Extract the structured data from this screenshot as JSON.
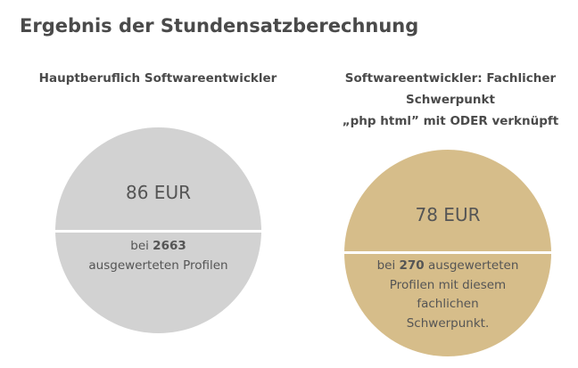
{
  "page": {
    "title": "Ergebnis der Stundensatzberechnung"
  },
  "left_result": {
    "heading": "Hauptberuflich Softwareentwickler",
    "rate": "86 EUR",
    "profile_line1_prefix": "bei ",
    "profile_count": "2663",
    "profile_line2": "ausgewerteten Profilen",
    "color": "#d2d2d2"
  },
  "right_result": {
    "heading_line1": "Softwareentwickler: Fachlicher",
    "heading_line2": "Schwerpunkt",
    "heading_line3": "„php html” mit ODER verknüpft",
    "rate": "78 EUR",
    "profile_line1_prefix": "bei ",
    "profile_count": "270",
    "profile_line1_suffix": " ausgewerteten",
    "profile_line2": "Profilen mit diesem",
    "profile_line3": "fachlichen",
    "profile_line4": "Schwerpunkt.",
    "color": "#d6bd8a"
  }
}
